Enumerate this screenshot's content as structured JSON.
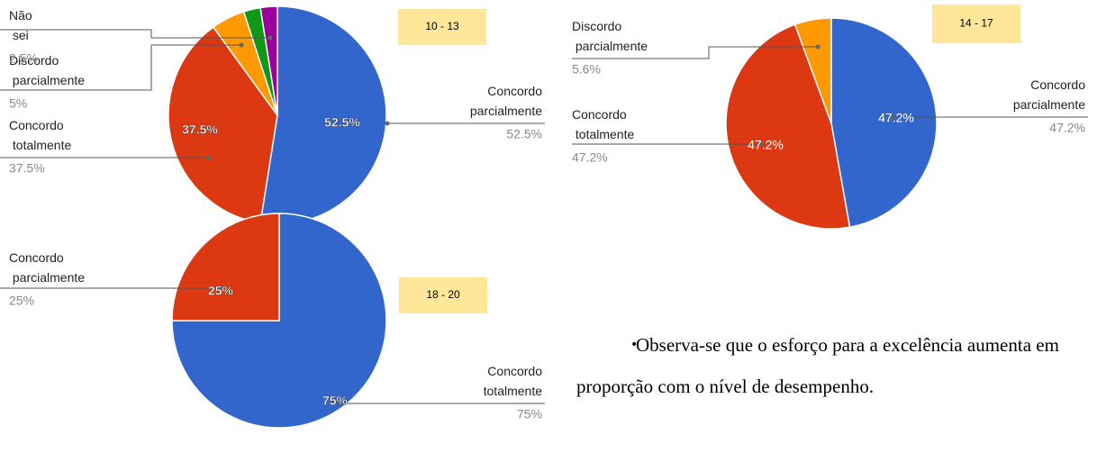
{
  "chart_data": [
    {
      "type": "pie",
      "title": "10 - 13",
      "categories": [
        "Concordo parcialmente",
        "Concordo totalmente",
        "Discordo parcialmente",
        null,
        "Não sei"
      ],
      "values": [
        52.5,
        37.5,
        5,
        2.5,
        2.5
      ],
      "value_labels": [
        "52.5%",
        "37.5%",
        "5%",
        "2.5%",
        "2.5%"
      ],
      "colors": [
        "#3366cc",
        "#dc3912",
        "#ff9900",
        "#109618",
        "#990099"
      ]
    },
    {
      "type": "pie",
      "title": "14 - 17",
      "categories": [
        "Concordo parcialmente",
        "Concordo totalmente",
        "Discordo parcialmente"
      ],
      "values": [
        47.2,
        47.2,
        5.6
      ],
      "value_labels": [
        "47.2%",
        "47.2%",
        "5.6%"
      ],
      "colors": [
        "#3366cc",
        "#dc3912",
        "#ff9900"
      ]
    },
    {
      "type": "pie",
      "title": "18 - 20",
      "categories": [
        "Concordo totalmente",
        "Concordo parcialmente"
      ],
      "values": [
        75,
        25
      ],
      "value_labels": [
        "75%",
        "25%"
      ],
      "colors": [
        "#3366cc",
        "#dc3912"
      ]
    }
  ],
  "text": "Observa-se que o esforço para a excelência aumenta em proporção com o nível de desempenho."
}
